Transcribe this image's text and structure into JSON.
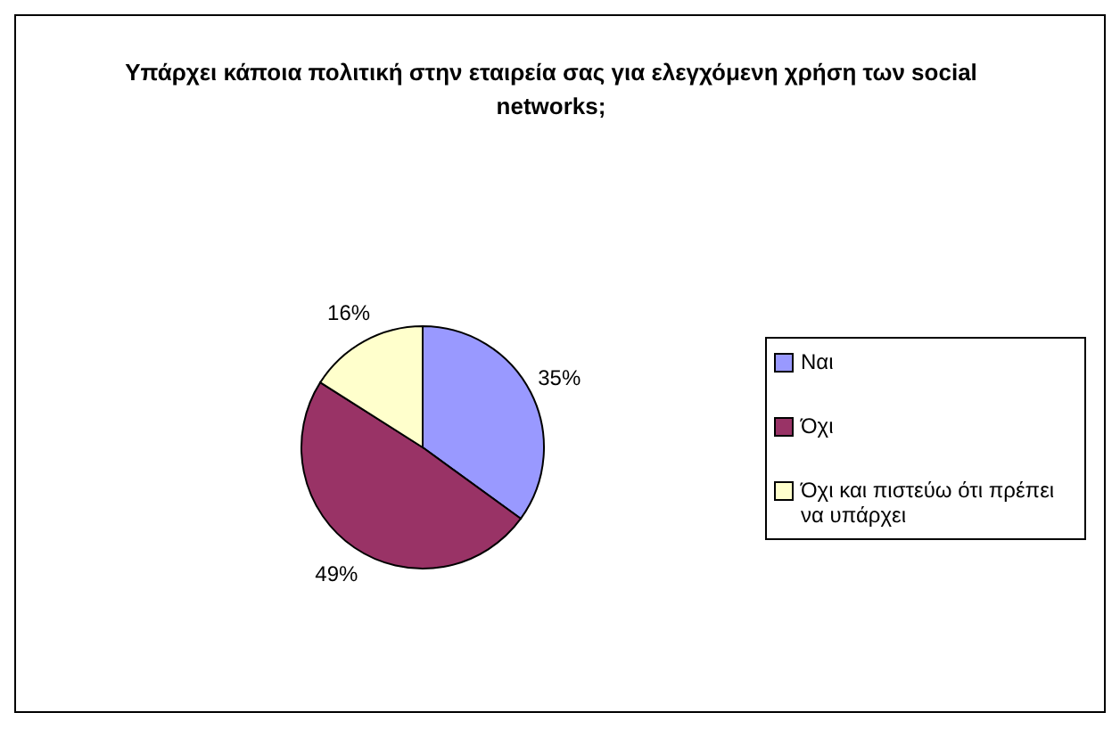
{
  "chart_data": {
    "type": "pie",
    "title": "Υπάρχει κάποια πολιτική στην εταιρεία σας για ελεγχόμενη χρήση των social networks;",
    "categories": [
      "Ναι",
      "Όχι",
      "Όχι και πιστεύω ότι πρέπει να υπάρχει"
    ],
    "values": [
      35,
      49,
      16
    ],
    "colors": [
      "#9999ff",
      "#993366",
      "#ffffcc"
    ],
    "value_labels": [
      "35%",
      "49%",
      "16%"
    ],
    "legend": "right"
  }
}
